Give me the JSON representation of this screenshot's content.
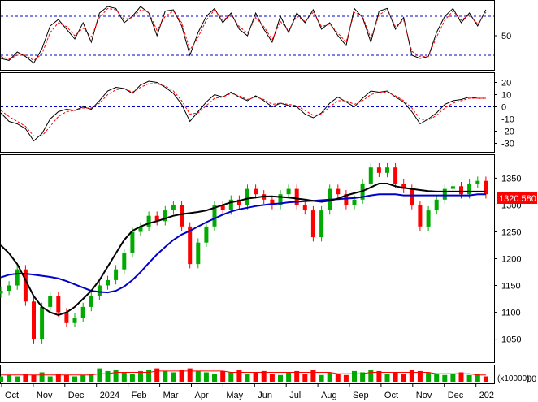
{
  "chart_data": [
    {
      "type": "line",
      "panel": "stochastic",
      "yticks": [
        50
      ],
      "reference_levels": [
        80,
        20
      ],
      "ylim": [
        0,
        100
      ],
      "colors": {
        "k": "#000000",
        "d": "#ff0000",
        "ref": "#0000cc"
      },
      "x": [
        0,
        10,
        20,
        30,
        40,
        50,
        60,
        70,
        80,
        90,
        100,
        110,
        120,
        130,
        140,
        150,
        160,
        170,
        180,
        190,
        200,
        210,
        220,
        230,
        240,
        250,
        260,
        270,
        280,
        290,
        300,
        310,
        320,
        330,
        340,
        350,
        360,
        370,
        380,
        390,
        400,
        410,
        420,
        430,
        440,
        450,
        460,
        470,
        480,
        490,
        500,
        510,
        520,
        530,
        540,
        550,
        560,
        570,
        580,
        590
      ],
      "series": [
        {
          "key": "k",
          "values": [
            15,
            12,
            25,
            18,
            8,
            30,
            65,
            75,
            60,
            45,
            70,
            40,
            85,
            95,
            92,
            70,
            80,
            95,
            85,
            50,
            88,
            90,
            65,
            20,
            55,
            80,
            92,
            70,
            85,
            60,
            50,
            85,
            60,
            40,
            80,
            55,
            85,
            70,
            90,
            60,
            70,
            50,
            35,
            92,
            78,
            40,
            88,
            92,
            60,
            78,
            20,
            15,
            18,
            55,
            80,
            92,
            70,
            85,
            65,
            90
          ]
        },
        {
          "key": "d",
          "values": [
            18,
            14,
            20,
            20,
            12,
            22,
            55,
            70,
            64,
            50,
            62,
            48,
            78,
            92,
            90,
            75,
            78,
            90,
            86,
            58,
            80,
            88,
            70,
            28,
            48,
            74,
            90,
            74,
            82,
            64,
            54,
            78,
            64,
            44,
            72,
            58,
            80,
            72,
            86,
            64,
            68,
            54,
            40,
            86,
            80,
            46,
            82,
            90,
            64,
            74,
            26,
            18,
            18,
            48,
            74,
            88,
            74,
            82,
            68,
            86
          ]
        }
      ]
    },
    {
      "type": "line",
      "panel": "macd",
      "yticks": [
        20,
        10,
        0,
        -10,
        -20,
        -30
      ],
      "ylim": [
        -35,
        25
      ],
      "reference_levels": [
        0
      ],
      "colors": {
        "macd": "#000000",
        "signal": "#ff0000",
        "ref": "#0000cc"
      },
      "x": [
        0,
        10,
        20,
        30,
        40,
        50,
        60,
        70,
        80,
        90,
        100,
        110,
        120,
        130,
        140,
        150,
        160,
        170,
        180,
        190,
        200,
        210,
        220,
        230,
        240,
        250,
        260,
        270,
        280,
        290,
        300,
        310,
        320,
        330,
        340,
        350,
        360,
        370,
        380,
        390,
        400,
        410,
        420,
        430,
        440,
        450,
        460,
        470,
        480,
        490,
        500,
        510,
        520,
        530,
        540,
        550,
        560,
        570,
        580,
        590
      ],
      "series": [
        {
          "key": "macd",
          "values": [
            -5,
            -12,
            -14,
            -18,
            -28,
            -22,
            -10,
            -4,
            -2,
            -3,
            0,
            -2,
            5,
            13,
            16,
            15,
            11,
            18,
            21,
            20,
            16,
            11,
            2,
            -12,
            -4,
            4,
            10,
            8,
            12,
            8,
            5,
            9,
            5,
            0,
            3,
            1,
            0,
            -6,
            -9,
            -5,
            3,
            8,
            4,
            0,
            7,
            13,
            12,
            13,
            8,
            4,
            -4,
            -14,
            -10,
            -5,
            2,
            5,
            6,
            8,
            7,
            7
          ]
        },
        {
          "key": "signal",
          "values": [
            -3,
            -8,
            -12,
            -16,
            -24,
            -24,
            -16,
            -8,
            -4,
            -3,
            -1,
            -1,
            3,
            10,
            14,
            15,
            12,
            16,
            19,
            19,
            17,
            13,
            5,
            -6,
            -5,
            1,
            7,
            8,
            11,
            9,
            6,
            8,
            6,
            2,
            3,
            2,
            1,
            -3,
            -7,
            -6,
            0,
            5,
            5,
            2,
            5,
            10,
            12,
            12,
            9,
            5,
            -1,
            -10,
            -11,
            -7,
            -1,
            3,
            5,
            7,
            7,
            7
          ]
        }
      ]
    },
    {
      "type": "line",
      "panel": "price",
      "yticks": [
        1350,
        1300,
        1250,
        1200,
        1150,
        1100,
        1050
      ],
      "ylim": [
        1010,
        1390
      ],
      "last_price": "1320.580",
      "colors": {
        "up": "#00aa00",
        "down": "#ff0000",
        "ma_long": "#0000cc",
        "ma_short": "#000000",
        "label_bg": "#ff0000"
      },
      "x": [
        0,
        10,
        20,
        30,
        40,
        50,
        60,
        70,
        80,
        90,
        100,
        110,
        120,
        130,
        140,
        150,
        160,
        170,
        180,
        190,
        200,
        210,
        220,
        230,
        240,
        250,
        260,
        270,
        280,
        290,
        300,
        310,
        320,
        330,
        340,
        350,
        360,
        370,
        380,
        390,
        400,
        410,
        420,
        430,
        440,
        450,
        460,
        470,
        480,
        490,
        500,
        510,
        520,
        530,
        540,
        550,
        560,
        570,
        580,
        590
      ],
      "series": [
        {
          "key": "close",
          "values": [
            1140,
            1150,
            1180,
            1120,
            1050,
            1110,
            1130,
            1100,
            1080,
            1090,
            1110,
            1130,
            1150,
            1160,
            1180,
            1210,
            1250,
            1260,
            1280,
            1270,
            1290,
            1300,
            1260,
            1190,
            1230,
            1260,
            1300,
            1290,
            1310,
            1300,
            1330,
            1320,
            1310,
            1300,
            1320,
            1330,
            1300,
            1290,
            1240,
            1290,
            1330,
            1320,
            1300,
            1310,
            1340,
            1370,
            1360,
            1370,
            1340,
            1330,
            1300,
            1260,
            1290,
            1310,
            1330,
            1335,
            1320,
            1340,
            1345,
            1320
          ]
        },
        {
          "key": "ma_long",
          "values": [
            1165,
            1170,
            1172,
            1172,
            1170,
            1168,
            1166,
            1163,
            1158,
            1152,
            1146,
            1140,
            1138,
            1137,
            1140,
            1148,
            1160,
            1175,
            1192,
            1208,
            1222,
            1235,
            1245,
            1252,
            1260,
            1268,
            1275,
            1282,
            1288,
            1292,
            1295,
            1298,
            1300,
            1302,
            1303,
            1305,
            1306,
            1307,
            1308,
            1309,
            1310,
            1311,
            1312,
            1313,
            1315,
            1318,
            1320,
            1320,
            1320,
            1318,
            1318,
            1318,
            1318,
            1318,
            1318,
            1318,
            1318,
            1318,
            1320,
            1320
          ]
        },
        {
          "key": "ma_short",
          "values": [
            1225,
            1210,
            1190,
            1160,
            1130,
            1110,
            1100,
            1095,
            1100,
            1110,
            1125,
            1140,
            1160,
            1185,
            1210,
            1235,
            1252,
            1260,
            1266,
            1270,
            1275,
            1280,
            1283,
            1285,
            1287,
            1290,
            1295,
            1300,
            1305,
            1308,
            1312,
            1314,
            1316,
            1316,
            1315,
            1314,
            1312,
            1310,
            1308,
            1306,
            1308,
            1312,
            1318,
            1322,
            1326,
            1333,
            1340,
            1340,
            1335,
            1332,
            1330,
            1328,
            1326,
            1325,
            1325,
            1325,
            1325,
            1325,
            1325,
            1325
          ]
        }
      ]
    },
    {
      "type": "bar",
      "panel": "volume",
      "unit": "(x10000)",
      "yticks": [
        "00"
      ],
      "colors": {
        "up": "#00aa00",
        "down": "#ff0000",
        "ma": "#ff0000"
      },
      "x": [
        0,
        10,
        20,
        30,
        40,
        50,
        60,
        70,
        80,
        90,
        100,
        110,
        120,
        130,
        140,
        150,
        160,
        170,
        180,
        190,
        200,
        210,
        220,
        230,
        240,
        250,
        260,
        270,
        280,
        290,
        300,
        310,
        320,
        330,
        340,
        350,
        360,
        370,
        380,
        390,
        400,
        410,
        420,
        430,
        440,
        450,
        460,
        470,
        480,
        490,
        500,
        510,
        520,
        530,
        540,
        550,
        560,
        570,
        580,
        590
      ],
      "series": [
        {
          "key": "volume",
          "values": [
            4,
            5,
            4,
            6,
            5,
            7,
            4,
            6,
            5,
            4,
            5,
            6,
            10,
            8,
            9,
            7,
            6,
            8,
            9,
            10,
            8,
            7,
            9,
            10,
            8,
            7,
            6,
            8,
            7,
            9,
            6,
            7,
            8,
            6,
            5,
            7,
            8,
            6,
            9,
            5,
            7,
            6,
            5,
            8,
            7,
            9,
            8,
            6,
            7,
            6,
            9,
            8,
            7,
            6,
            5,
            6,
            7,
            5,
            6,
            4
          ]
        },
        {
          "key": "volume_ma",
          "values": [
            5,
            5,
            5,
            5,
            5,
            5,
            5,
            5,
            5,
            5,
            5,
            5,
            6,
            6,
            7,
            7,
            7,
            7,
            7,
            8,
            8,
            8,
            8,
            8,
            8,
            8,
            8,
            8,
            7,
            7,
            7,
            7,
            7,
            7,
            7,
            7,
            7,
            7,
            7,
            7,
            7,
            6,
            6,
            6,
            6,
            7,
            7,
            7,
            7,
            7,
            7,
            7,
            7,
            6,
            6,
            6,
            6,
            6,
            5,
            5
          ]
        }
      ]
    }
  ],
  "x_axis": {
    "labels": [
      "Oct",
      "Nov",
      "Dec",
      "2024",
      "Feb",
      "Mar",
      "Apr",
      "May",
      "Jun",
      "Jul",
      "Aug",
      "Sep",
      "Oct",
      "Nov",
      "Dec",
      "202"
    ]
  }
}
